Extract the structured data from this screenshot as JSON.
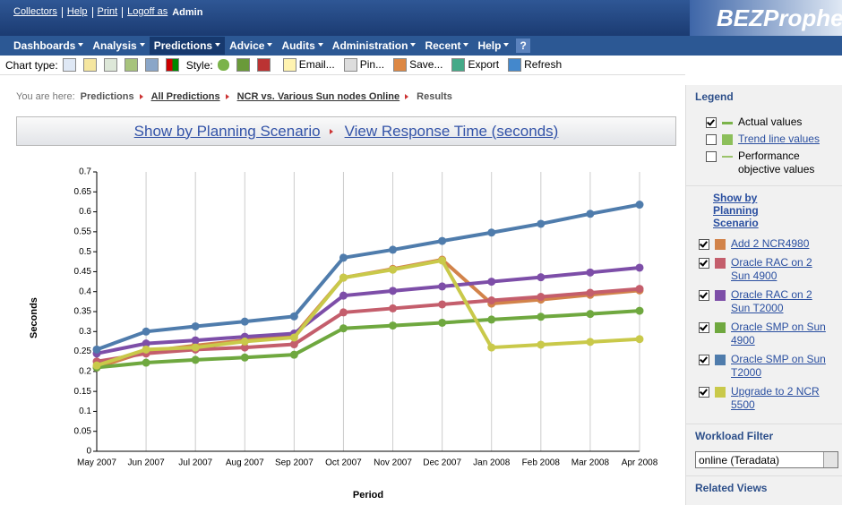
{
  "header": {
    "links": [
      "Collectors",
      "Help",
      "Print",
      "Logoff as"
    ],
    "user": "Admin",
    "logo": "BEZProphet"
  },
  "menu": [
    "Dashboards",
    "Analysis",
    "Predictions",
    "Advice",
    "Audits",
    "Administration",
    "Recent",
    "Help",
    "?"
  ],
  "toolbar": {
    "chart_type": "Chart type:",
    "style": "Style:",
    "buttons": [
      "Email...",
      "Pin...",
      "Save...",
      "Export",
      "Refresh"
    ]
  },
  "breadcrumb": {
    "label": "You are here:",
    "items": [
      "Predictions",
      "All Predictions",
      "NCR vs. Various Sun nodes Online",
      "Results"
    ]
  },
  "view_header": {
    "scenario": "Show by Planning Scenario",
    "metric": "View Response Time (seconds)"
  },
  "chart_data": {
    "type": "line",
    "x_label": "Period",
    "y_label": "Seconds",
    "categories": [
      "May 2007",
      "Jun 2007",
      "Jul 2007",
      "Aug 2007",
      "Sep 2007",
      "Oct 2007",
      "Nov 2007",
      "Dec 2007",
      "Jan 2008",
      "Feb 2008",
      "Mar 2008",
      "Apr 2008"
    ],
    "series": [
      {
        "name": "Add 2 NCR4980",
        "color": "#d2834a",
        "values": [
          0.21,
          0.25,
          0.265,
          0.278,
          0.29,
          0.435,
          0.457,
          0.48,
          0.37,
          0.38,
          0.392,
          0.403
        ]
      },
      {
        "name": "Oracle RAC on 2 Sun 4900",
        "color": "#c45e6c",
        "values": [
          0.225,
          0.245,
          0.255,
          0.26,
          0.268,
          0.348,
          0.358,
          0.368,
          0.378,
          0.387,
          0.397,
          0.407
        ]
      },
      {
        "name": "Oracle RAC on 2 Sun T2000",
        "color": "#7d4ea8",
        "values": [
          0.245,
          0.27,
          0.278,
          0.287,
          0.295,
          0.39,
          0.402,
          0.413,
          0.425,
          0.436,
          0.448,
          0.46
        ]
      },
      {
        "name": "Oracle SMP on Sun 4900",
        "color": "#6fa83f",
        "values": [
          0.21,
          0.222,
          0.229,
          0.235,
          0.242,
          0.308,
          0.315,
          0.322,
          0.33,
          0.337,
          0.344,
          0.352
        ]
      },
      {
        "name": "Oracle SMP on Sun T2000",
        "color": "#4f7cac",
        "values": [
          0.255,
          0.3,
          0.313,
          0.325,
          0.338,
          0.485,
          0.505,
          0.527,
          0.548,
          0.57,
          0.595,
          0.618
        ]
      },
      {
        "name": "Upgrade to 2 NCR 5500",
        "color": "#c9c94a",
        "values": [
          0.215,
          0.255,
          0.26,
          0.275,
          0.285,
          0.435,
          0.455,
          0.478,
          0.26,
          0.267,
          0.274,
          0.281
        ]
      }
    ],
    "ylim": [
      0,
      0.7
    ],
    "yticks": [
      0,
      0.05,
      0.1,
      0.15,
      0.2,
      0.25,
      0.3,
      0.35,
      0.4,
      0.45,
      0.5,
      0.55,
      0.6,
      0.65,
      0.7
    ],
    "grid": true
  },
  "sidebar": {
    "legend_title": "Legend",
    "legend_items": [
      "Actual values",
      "Trend line values",
      "Performance objective values"
    ],
    "scenario_title": "Show by Planning Scenario",
    "workload_title": "Workload Filter",
    "workload_value": "online (Teradata)",
    "related_title": "Related Views"
  }
}
